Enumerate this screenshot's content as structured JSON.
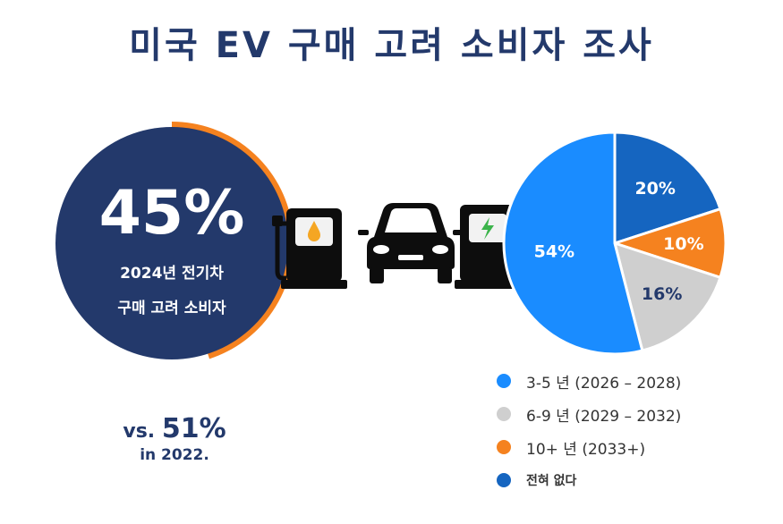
{
  "title": "미국 EV 구매 고려 소비자 조사",
  "stat": {
    "percent_label": "45%",
    "value": 45,
    "line1": "2024년 전기차",
    "line2": "구매 고려 소비자",
    "vs_prefix": "vs.",
    "vs_value": "51%",
    "vs_year": "in 2022."
  },
  "colors": {
    "navy": "#23396b",
    "orange": "#f5821f",
    "blue_light": "#1a8cff",
    "gray": "#cfcfcf",
    "blue_dark": "#1565c0"
  },
  "icons": [
    "fuel-pump-icon",
    "car-icon",
    "ev-charger-icon"
  ],
  "chart_data": {
    "type": "pie",
    "slices": [
      {
        "label": "3-5 년  (2026 – 2028)",
        "value": 54,
        "display": "54%",
        "color": "#1a8cff"
      },
      {
        "label": "6-9 년  (2029 – 2032)",
        "value": 16,
        "display": "16%",
        "color": "#cfcfcf"
      },
      {
        "label": "10+ 년  (2033+)",
        "value": 10,
        "display": "10%",
        "color": "#f5821f"
      },
      {
        "label": "전혀 없다",
        "value": 20,
        "display": "20%",
        "color": "#1565c0"
      }
    ]
  }
}
